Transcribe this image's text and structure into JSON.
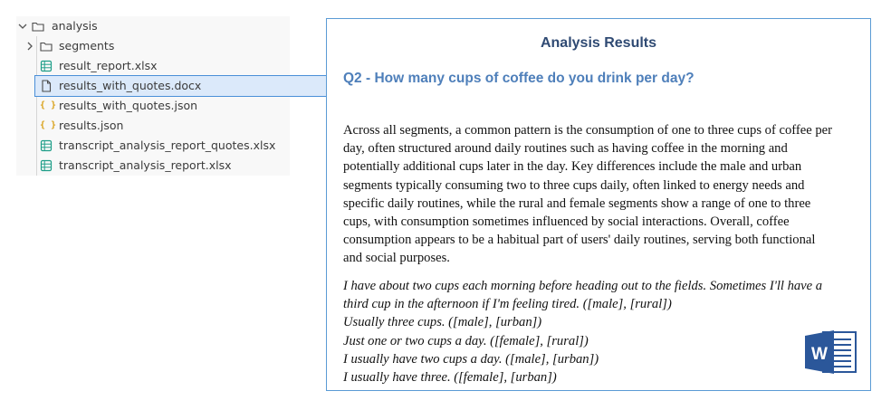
{
  "explorer": {
    "root": {
      "label": "analysis",
      "icon": "folder-icon",
      "expanded": true
    },
    "items": [
      {
        "label": "segments",
        "icon": "folder-icon",
        "type": "folder",
        "expanded": false
      },
      {
        "label": "result_report.xlsx",
        "icon": "spreadsheet-icon",
        "type": "xlsx"
      },
      {
        "label": "results_with_quotes.docx",
        "icon": "document-icon",
        "type": "docx",
        "selected": true
      },
      {
        "label": "results_with_quotes.json",
        "icon": "json-braces-icon",
        "type": "json"
      },
      {
        "label": "results.json",
        "icon": "json-braces-icon",
        "type": "json"
      },
      {
        "label": "transcript_analysis_report_quotes.xlsx",
        "icon": "spreadsheet-icon",
        "type": "xlsx"
      },
      {
        "label": "transcript_analysis_report.xlsx",
        "icon": "spreadsheet-icon",
        "type": "xlsx"
      }
    ],
    "colors": {
      "folder": "#4a4a4a",
      "spreadsheet": "#1f9e89",
      "json": "#d9a21b",
      "selected_bg": "#dbe9fa",
      "selected_border": "#4a8fd8"
    }
  },
  "document": {
    "title": "Analysis Results",
    "question": "Q2 - How many cups of coffee do you drink per day?",
    "summary_lines": [
      "Across all segments, a common pattern is the consumption of one to three cups of coffee per",
      "day, often structured around daily routines such as having coffee in the morning and",
      "potentially additional cups later in the day. Key differences include the male and urban",
      "segments typically consuming two to three cups daily, often linked to energy needs and",
      "specific daily routines, while the rural and female segments show a range of one to three",
      "cups, with consumption sometimes influenced by social interactions. Overall, coffee",
      "consumption appears to be a habitual part of users' daily routines, serving both functional",
      "and social purposes."
    ],
    "quote_lines": [
      "I have about two cups each morning before heading out to the fields. Sometimes I'll have a",
      "third cup in the afternoon if I'm feeling tired. ([male], [rural])",
      "Usually three cups. ([male], [urban])",
      "Just one or two cups a day. ([female], [rural])",
      "I usually have two cups a day. ([male], [urban])",
      "I usually have three. ([female], [urban])"
    ],
    "logo": {
      "icon": "microsoft-word-icon",
      "letter": "W"
    },
    "colors": {
      "title": "#2f4a73",
      "question": "#4e7fba",
      "border": "#5b9bd5",
      "word_blue": "#2b579a"
    }
  }
}
